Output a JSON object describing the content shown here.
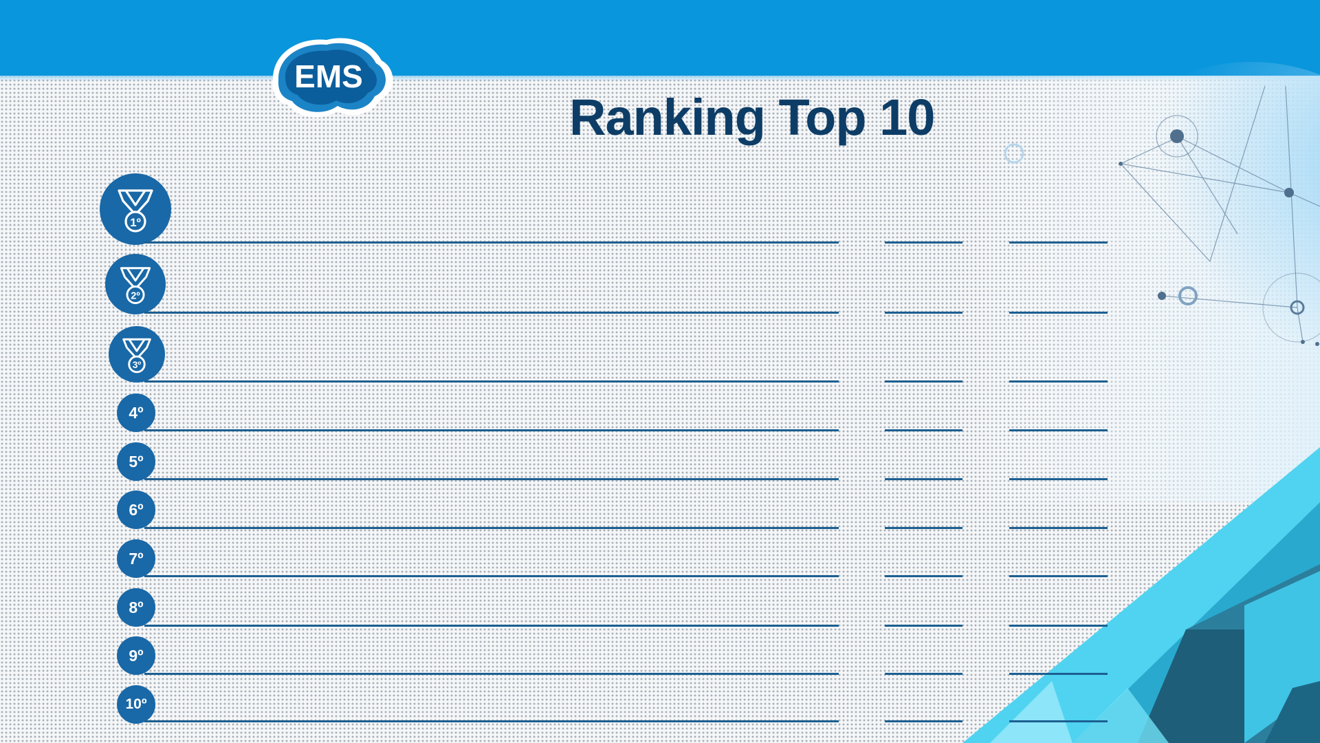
{
  "brand": {
    "logo_text": "EMS",
    "colors": {
      "primary": "#0a96dc",
      "navy": "#0d3d66",
      "badge": "#1968a7",
      "line": "#1c5f91"
    }
  },
  "title": "Ranking Top 10",
  "ranks": [
    {
      "label": "1º",
      "icon": "medal-icon"
    },
    {
      "label": "2º",
      "icon": "medal-icon"
    },
    {
      "label": "3º",
      "icon": "medal-icon"
    },
    {
      "label": "4º"
    },
    {
      "label": "5º"
    },
    {
      "label": "6º"
    },
    {
      "label": "7º"
    },
    {
      "label": "8º"
    },
    {
      "label": "9º"
    },
    {
      "label": "10º"
    }
  ]
}
